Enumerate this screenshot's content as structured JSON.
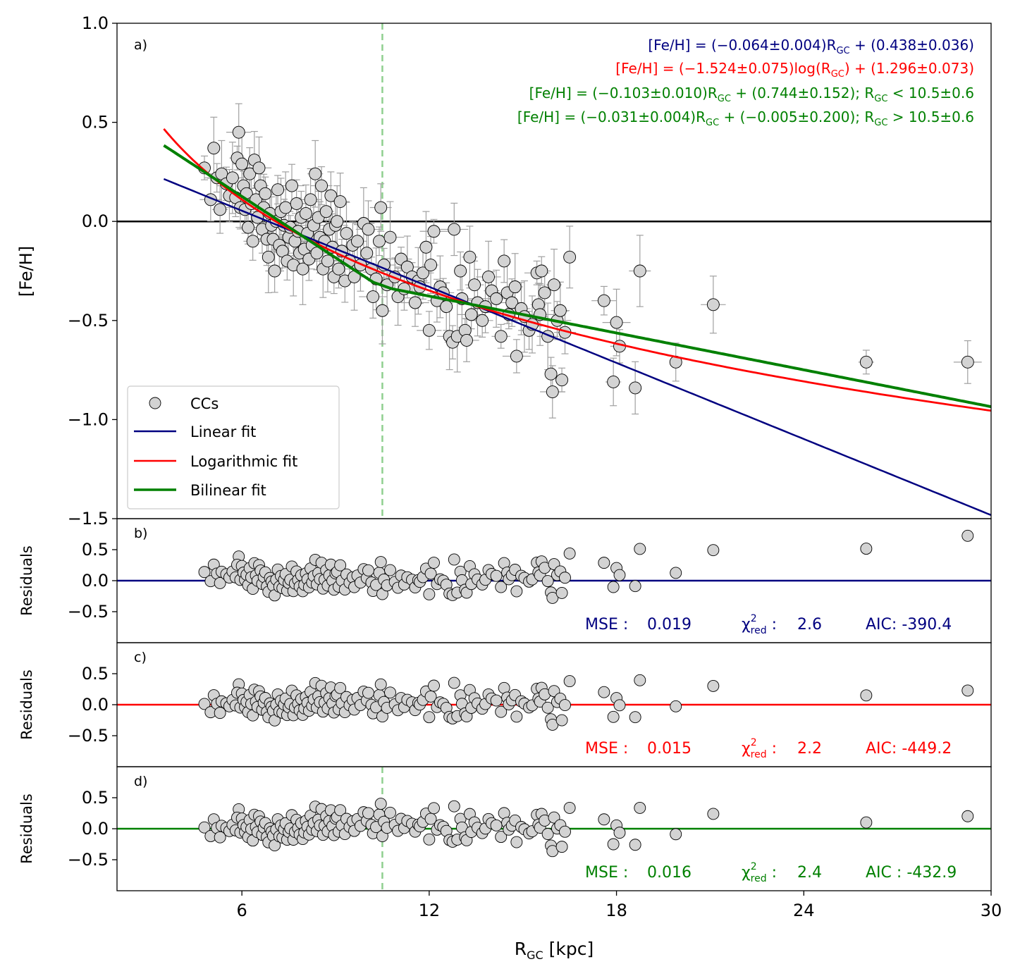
{
  "colors": {
    "linear": "#000080",
    "log": "#ff0000",
    "bilinear": "#008000",
    "zero_line": "#000000",
    "point_fill": "#d3d3d3",
    "point_edge": "#000000",
    "errorbar": "#a0a0a0",
    "vline": "#8fcf8f"
  },
  "x_axis": {
    "label_main": "R",
    "label_sub": "GC",
    "label_rest": " [kpc]",
    "range": [
      2,
      30
    ],
    "ticks": [
      6,
      12,
      18,
      24,
      30
    ],
    "tick_labels": [
      "6",
      "12",
      "18",
      "24",
      "30"
    ]
  },
  "vline_x": 10.5,
  "panel_a": {
    "letter": "a)",
    "ylabel": "[Fe/H]",
    "ylim": [
      -1.5,
      1.0
    ],
    "yticks": [
      1.0,
      0.5,
      0.0,
      -0.5,
      -1.0,
      -1.5
    ],
    "ytick_labels": [
      "1.0",
      "0.5",
      "0.0",
      "−0.5",
      "−1.0",
      "−1.5"
    ],
    "equations": [
      {
        "pre": "[Fe/H] = (−0.064±0.004)R",
        "sub": "GC",
        "post": " + (0.438±0.036)",
        "color": "#000080"
      },
      {
        "pre": "[Fe/H] = (−1.524±0.075)log(R",
        "sub": "GC",
        "post": ") + (1.296±0.073)",
        "color": "#ff0000"
      },
      {
        "pre": "[Fe/H] = (−0.103±0.010)R",
        "sub": "GC",
        "post": " + (0.744±0.152);    R",
        "sub2": "GC",
        "post2": " < 10.5±0.6",
        "color": "#008000"
      },
      {
        "pre": "[Fe/H] = (−0.031±0.004)R",
        "sub": "GC",
        "post": " + (−0.005±0.200);    R",
        "sub2": "GC",
        "post2": " > 10.5±0.6",
        "color": "#008000"
      }
    ],
    "legend": [
      {
        "label": "CCs",
        "kind": "marker"
      },
      {
        "label": "Linear fit",
        "kind": "line",
        "color": "#000080"
      },
      {
        "label": "Logarithmic fit",
        "kind": "line",
        "color": "#ff0000"
      },
      {
        "label": "Bilinear fit",
        "kind": "line",
        "color": "#008000"
      }
    ]
  },
  "residual_panels": [
    {
      "letter": "b)",
      "ylabel": "Residuals",
      "color": "#000080",
      "mse_label": "MSE :",
      "mse": "0.019",
      "chi_label": "χ",
      "chi_sup": "2",
      "chi_sub": "red",
      "chi_colon": " :",
      "chi": "2.6",
      "aic_label": "AIC: ",
      "aic": "-390.4",
      "vline": false
    },
    {
      "letter": "c)",
      "ylabel": "Residuals",
      "color": "#ff0000",
      "mse_label": "MSE :",
      "mse": "0.015",
      "chi_label": "χ",
      "chi_sup": "2",
      "chi_sub": "red",
      "chi_colon": " :",
      "chi": "2.2",
      "aic_label": "AIC: ",
      "aic": "-449.2",
      "vline": false
    },
    {
      "letter": "d)",
      "ylabel": "Residuals",
      "color": "#008000",
      "mse_label": "MSE :",
      "mse": "0.016",
      "chi_label": "χ",
      "chi_sup": "2",
      "chi_sub": "red",
      "chi_colon": " :",
      "chi": "2.4",
      "aic_label": "AIC : ",
      "aic": "-432.9",
      "vline": true
    }
  ],
  "residual_axis": {
    "ylim": [
      -1.0,
      1.0
    ],
    "yticks": [
      0.5,
      0.0,
      -0.5
    ],
    "ytick_labels": [
      "0.5",
      "0.0",
      "−0.5"
    ]
  },
  "chart_data": {
    "type": "scatter",
    "title": "",
    "xlabel": "RGC [kpc]",
    "ylabel": "[Fe/H]",
    "xlim": [
      2,
      30
    ],
    "ylim": [
      -1.5,
      1.0
    ],
    "series": [
      {
        "name": "CCs",
        "points": [
          [
            4.8,
            0.27
          ],
          [
            5.0,
            0.11
          ],
          [
            5.1,
            0.37
          ],
          [
            5.2,
            0.22
          ],
          [
            5.3,
            0.06
          ],
          [
            5.35,
            0.24
          ],
          [
            5.5,
            0.19
          ],
          [
            5.6,
            0.13
          ],
          [
            5.7,
            0.22
          ],
          [
            5.8,
            0.12
          ],
          [
            5.9,
            0.45
          ],
          [
            5.85,
            0.32
          ],
          [
            5.95,
            0.07
          ],
          [
            6.0,
            0.29
          ],
          [
            6.05,
            0.18
          ],
          [
            6.1,
            0.06
          ],
          [
            6.15,
            0.14
          ],
          [
            6.2,
            -0.03
          ],
          [
            6.25,
            0.24
          ],
          [
            6.3,
            0.09
          ],
          [
            6.35,
            -0.1
          ],
          [
            6.4,
            0.31
          ],
          [
            6.45,
            0.11
          ],
          [
            6.5,
            0.02
          ],
          [
            6.55,
            0.27
          ],
          [
            6.6,
            0.18
          ],
          [
            6.65,
            -0.04
          ],
          [
            6.7,
            0.07
          ],
          [
            6.75,
            0.14
          ],
          [
            6.8,
            -0.09
          ],
          [
            6.85,
            -0.18
          ],
          [
            6.9,
            0.04
          ],
          [
            6.95,
            -0.02
          ],
          [
            7.0,
            -0.09
          ],
          [
            7.05,
            -0.25
          ],
          [
            7.1,
            0.0
          ],
          [
            7.15,
            0.16
          ],
          [
            7.2,
            -0.12
          ],
          [
            7.25,
            0.05
          ],
          [
            7.3,
            -0.15
          ],
          [
            7.35,
            -0.02
          ],
          [
            7.4,
            0.07
          ],
          [
            7.45,
            -0.2
          ],
          [
            7.5,
            -0.08
          ],
          [
            7.55,
            -0.03
          ],
          [
            7.6,
            0.18
          ],
          [
            7.65,
            -0.22
          ],
          [
            7.7,
            -0.1
          ],
          [
            7.75,
            0.09
          ],
          [
            7.8,
            -0.05
          ],
          [
            7.85,
            -0.16
          ],
          [
            7.9,
            0.02
          ],
          [
            7.95,
            -0.24
          ],
          [
            8.0,
            -0.14
          ],
          [
            8.05,
            0.04
          ],
          [
            8.1,
            -0.06
          ],
          [
            8.15,
            -0.19
          ],
          [
            8.2,
            0.11
          ],
          [
            8.25,
            -0.12
          ],
          [
            8.3,
            -0.02
          ],
          [
            8.35,
            0.24
          ],
          [
            8.4,
            -0.16
          ],
          [
            8.45,
            0.02
          ],
          [
            8.5,
            -0.08
          ],
          [
            8.55,
            0.18
          ],
          [
            8.6,
            -0.24
          ],
          [
            8.65,
            -0.1
          ],
          [
            8.7,
            0.05
          ],
          [
            8.75,
            -0.2
          ],
          [
            8.8,
            -0.04
          ],
          [
            8.85,
            0.13
          ],
          [
            8.9,
            -0.13
          ],
          [
            8.95,
            -0.28
          ],
          [
            9.0,
            -0.02
          ],
          [
            9.05,
            0.0
          ],
          [
            9.1,
            -0.24
          ],
          [
            9.15,
            0.1
          ],
          [
            9.2,
            -0.15
          ],
          [
            9.3,
            -0.3
          ],
          [
            9.35,
            -0.06
          ],
          [
            9.45,
            -0.2
          ],
          [
            9.55,
            -0.12
          ],
          [
            9.6,
            -0.28
          ],
          [
            9.7,
            -0.1
          ],
          [
            9.8,
            -0.22
          ],
          [
            9.9,
            -0.01
          ],
          [
            10.0,
            -0.16
          ],
          [
            10.05,
            -0.04
          ],
          [
            10.15,
            -0.24
          ],
          [
            10.2,
            -0.38
          ],
          [
            10.3,
            -0.29
          ],
          [
            10.4,
            -0.1
          ],
          [
            10.45,
            0.07
          ],
          [
            10.5,
            -0.45
          ],
          [
            10.55,
            -0.22
          ],
          [
            10.65,
            -0.32
          ],
          [
            10.75,
            -0.08
          ],
          [
            10.9,
            -0.28
          ],
          [
            11.0,
            -0.38
          ],
          [
            11.1,
            -0.19
          ],
          [
            11.2,
            -0.34
          ],
          [
            11.3,
            -0.23
          ],
          [
            11.45,
            -0.28
          ],
          [
            11.55,
            -0.41
          ],
          [
            11.65,
            -0.3
          ],
          [
            11.7,
            -0.33
          ],
          [
            11.8,
            -0.26
          ],
          [
            11.9,
            -0.13
          ],
          [
            12.0,
            -0.55
          ],
          [
            12.05,
            -0.22
          ],
          [
            12.15,
            -0.05
          ],
          [
            12.25,
            -0.4
          ],
          [
            12.35,
            -0.33
          ],
          [
            12.45,
            -0.36
          ],
          [
            12.55,
            -0.43
          ],
          [
            12.65,
            -0.58
          ],
          [
            12.75,
            -0.61
          ],
          [
            12.8,
            -0.04
          ],
          [
            12.9,
            -0.58
          ],
          [
            13.0,
            -0.25
          ],
          [
            13.05,
            -0.39
          ],
          [
            13.15,
            -0.55
          ],
          [
            13.2,
            -0.6
          ],
          [
            13.3,
            -0.18
          ],
          [
            13.35,
            -0.47
          ],
          [
            13.45,
            -0.32
          ],
          [
            13.55,
            -0.41
          ],
          [
            13.7,
            -0.5
          ],
          [
            13.8,
            -0.43
          ],
          [
            13.9,
            -0.28
          ],
          [
            14.0,
            -0.35
          ],
          [
            14.15,
            -0.39
          ],
          [
            14.3,
            -0.58
          ],
          [
            14.4,
            -0.2
          ],
          [
            14.5,
            -0.36
          ],
          [
            14.55,
            -0.47
          ],
          [
            14.65,
            -0.41
          ],
          [
            14.75,
            -0.33
          ],
          [
            14.8,
            -0.68
          ],
          [
            14.95,
            -0.44
          ],
          [
            15.05,
            -0.48
          ],
          [
            15.2,
            -0.55
          ],
          [
            15.3,
            -0.52
          ],
          [
            15.45,
            -0.26
          ],
          [
            15.5,
            -0.42
          ],
          [
            15.55,
            -0.47
          ],
          [
            15.6,
            -0.25
          ],
          [
            15.7,
            -0.36
          ],
          [
            15.8,
            -0.58
          ],
          [
            15.9,
            -0.77
          ],
          [
            15.95,
            -0.86
          ],
          [
            16.0,
            -0.32
          ],
          [
            16.1,
            -0.5
          ],
          [
            16.2,
            -0.45
          ],
          [
            16.25,
            -0.8
          ],
          [
            16.35,
            -0.56
          ],
          [
            16.5,
            -0.18
          ],
          [
            17.6,
            -0.4
          ],
          [
            17.9,
            -0.81
          ],
          [
            18.0,
            -0.51
          ],
          [
            18.1,
            -0.63
          ],
          [
            18.6,
            -0.84
          ],
          [
            18.75,
            -0.25
          ],
          [
            19.9,
            -0.71
          ],
          [
            21.1,
            -0.42
          ],
          [
            26.0,
            -0.71
          ],
          [
            29.25,
            -0.71
          ]
        ]
      }
    ],
    "fits": [
      {
        "name": "Linear fit",
        "slope": -0.064,
        "intercept": 0.438,
        "color": "#000080"
      },
      {
        "name": "Logarithmic fit",
        "log_slope": -1.524,
        "intercept": 1.296,
        "color": "#ff0000"
      },
      {
        "name": "Bilinear fit",
        "break": 10.5,
        "slope_in": -0.103,
        "intercept_in": 0.744,
        "slope_out": -0.031,
        "intercept_out": -0.005,
        "color": "#008000"
      }
    ],
    "legend_position": "lower-left",
    "grid": false
  }
}
